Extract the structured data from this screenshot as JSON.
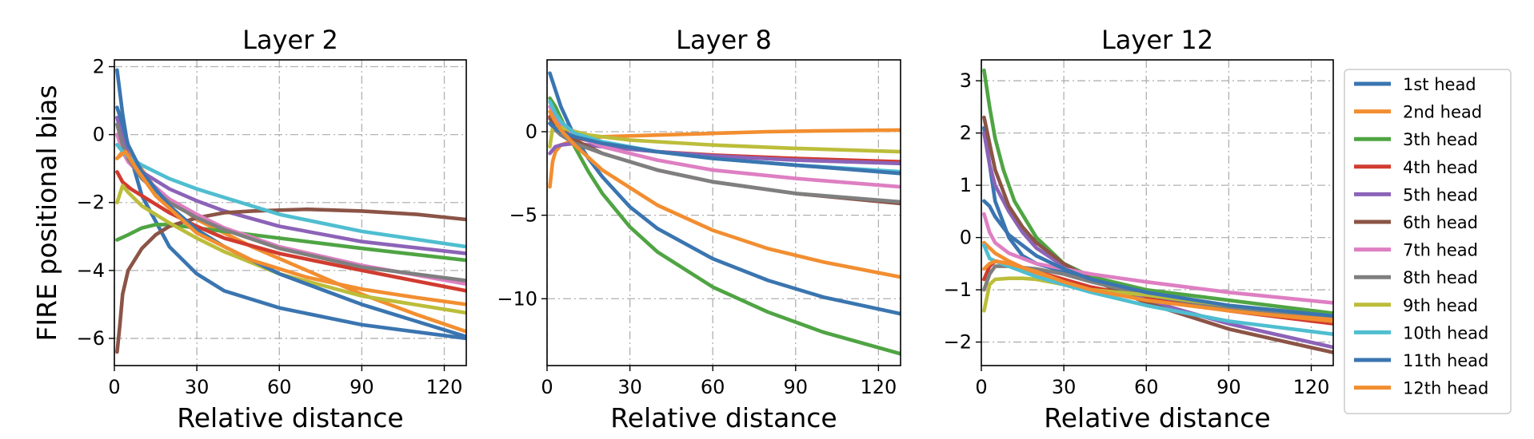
{
  "figure": {
    "ylabel": "FIRE positional bias",
    "legend_position": "right"
  },
  "chart_data": [
    {
      "type": "line",
      "title": "Layer 2",
      "xlabel": "Relative distance",
      "ylabel": "FIRE positional bias",
      "xlim": [
        0,
        128
      ],
      "ylim": [
        -6.8,
        2.2
      ],
      "xticks": [
        0,
        30,
        60,
        90,
        120
      ],
      "yticks": [
        2,
        0,
        -2,
        -4,
        -6
      ],
      "grid": true,
      "series": [
        {
          "name": "1st head",
          "color": "#3a75b0",
          "x": [
            1,
            3,
            5,
            10,
            20,
            30,
            40,
            60,
            90,
            128
          ],
          "y": [
            1.9,
            0.6,
            -0.4,
            -1.8,
            -3.3,
            -4.1,
            -4.6,
            -5.1,
            -5.6,
            -6.0
          ]
        },
        {
          "name": "2nd head",
          "color": "#f28e30",
          "x": [
            1,
            4,
            8,
            15,
            30,
            50,
            70,
            90,
            110,
            128
          ],
          "y": [
            -0.7,
            -0.4,
            -0.8,
            -1.6,
            -2.5,
            -3.3,
            -4.0,
            -4.7,
            -5.3,
            -5.8
          ]
        },
        {
          "name": "3th head",
          "color": "#4fa443",
          "x": [
            1,
            5,
            10,
            15,
            20,
            30,
            40,
            60,
            90,
            128
          ],
          "y": [
            -3.1,
            -2.95,
            -2.75,
            -2.65,
            -2.65,
            -2.75,
            -2.85,
            -3.05,
            -3.35,
            -3.7
          ]
        },
        {
          "name": "4th head",
          "color": "#d13b2f",
          "x": [
            1,
            3,
            6,
            10,
            20,
            30,
            40,
            60,
            90,
            128
          ],
          "y": [
            -1.1,
            -1.4,
            -1.6,
            -1.8,
            -2.3,
            -2.7,
            -3.05,
            -3.5,
            -4.0,
            -4.6
          ]
        },
        {
          "name": "5th head",
          "color": "#8c63b8",
          "x": [
            1,
            3,
            5,
            10,
            20,
            30,
            40,
            60,
            90,
            128
          ],
          "y": [
            0.5,
            -0.1,
            -0.6,
            -1.1,
            -1.6,
            -1.95,
            -2.25,
            -2.7,
            -3.15,
            -3.5
          ]
        },
        {
          "name": "6th head",
          "color": "#8b5446",
          "x": [
            1,
            2,
            3,
            5,
            10,
            15,
            20,
            30,
            40,
            50,
            70,
            90,
            110,
            128
          ],
          "y": [
            -6.4,
            -5.6,
            -4.7,
            -4.0,
            -3.35,
            -2.95,
            -2.7,
            -2.45,
            -2.3,
            -2.25,
            -2.2,
            -2.25,
            -2.35,
            -2.5
          ]
        },
        {
          "name": "7th head",
          "color": "#de7fc2",
          "x": [
            1,
            3,
            5,
            10,
            20,
            30,
            40,
            60,
            90,
            128
          ],
          "y": [
            0.0,
            -0.5,
            -0.8,
            -1.2,
            -1.9,
            -2.35,
            -2.75,
            -3.3,
            -3.85,
            -4.4
          ]
        },
        {
          "name": "8th head",
          "color": "#7f7f7f",
          "x": [
            1,
            3,
            5,
            10,
            20,
            30,
            40,
            60,
            90,
            128
          ],
          "y": [
            0.3,
            -0.3,
            -0.7,
            -1.3,
            -2.0,
            -2.45,
            -2.8,
            -3.35,
            -3.9,
            -4.3
          ]
        },
        {
          "name": "9th head",
          "color": "#bcbd3a",
          "x": [
            1,
            3,
            5,
            10,
            20,
            30,
            40,
            60,
            90,
            128
          ],
          "y": [
            -2.0,
            -1.5,
            -1.7,
            -2.1,
            -2.6,
            -3.05,
            -3.45,
            -4.1,
            -4.75,
            -5.25
          ]
        },
        {
          "name": "10th head",
          "color": "#4fbed0",
          "x": [
            1,
            3,
            5,
            10,
            20,
            30,
            40,
            60,
            90,
            128
          ],
          "y": [
            -0.3,
            -0.5,
            -0.65,
            -0.9,
            -1.3,
            -1.6,
            -1.85,
            -2.35,
            -2.85,
            -3.3
          ]
        },
        {
          "name": "11th head",
          "color": "#3a75b0",
          "x": [
            1,
            3,
            5,
            10,
            20,
            30,
            40,
            60,
            90,
            128
          ],
          "y": [
            0.8,
            0.3,
            -0.3,
            -1.1,
            -2.1,
            -2.8,
            -3.3,
            -4.1,
            -5.0,
            -5.95
          ]
        },
        {
          "name": "12th head",
          "color": "#f28e30",
          "x": [
            1,
            4,
            8,
            15,
            30,
            50,
            70,
            90,
            110,
            128
          ],
          "y": [
            -0.7,
            -0.5,
            -1.0,
            -1.8,
            -2.9,
            -3.7,
            -4.2,
            -4.55,
            -4.8,
            -5.0
          ]
        }
      ]
    },
    {
      "type": "line",
      "title": "Layer 8",
      "xlabel": "Relative distance",
      "ylabel": "",
      "xlim": [
        0,
        128
      ],
      "ylim": [
        -14,
        4.3
      ],
      "xticks": [
        0,
        30,
        60,
        90,
        120
      ],
      "yticks": [
        0,
        -5,
        -10
      ],
      "grid": true,
      "series": [
        {
          "name": "1st head",
          "color": "#3a75b0",
          "x": [
            1,
            3,
            5,
            10,
            15,
            20,
            30,
            40,
            60,
            80,
            100,
            128
          ],
          "y": [
            3.5,
            2.5,
            1.5,
            -0.3,
            -1.6,
            -2.7,
            -4.5,
            -5.8,
            -7.6,
            -8.9,
            -9.9,
            -10.9
          ]
        },
        {
          "name": "2nd head",
          "color": "#f28e30",
          "x": [
            1,
            2,
            3,
            5,
            10,
            20,
            40,
            60,
            80,
            100,
            128
          ],
          "y": [
            -3.3,
            -1.8,
            -1.2,
            -0.8,
            -0.5,
            -0.3,
            -0.2,
            -0.1,
            0.0,
            0.05,
            0.1
          ]
        },
        {
          "name": "3th head",
          "color": "#4fa443",
          "x": [
            1,
            3,
            5,
            10,
            15,
            20,
            30,
            40,
            60,
            80,
            100,
            128
          ],
          "y": [
            2.0,
            1.5,
            0.8,
            -0.9,
            -2.4,
            -3.7,
            -5.7,
            -7.2,
            -9.3,
            -10.8,
            -12.0,
            -13.3
          ]
        },
        {
          "name": "4th head",
          "color": "#d13b2f",
          "x": [
            1,
            5,
            10,
            20,
            40,
            60,
            90,
            128
          ],
          "y": [
            0.9,
            0.2,
            -0.3,
            -0.8,
            -1.2,
            -1.4,
            -1.6,
            -1.8
          ]
        },
        {
          "name": "5th head",
          "color": "#8c63b8",
          "x": [
            1,
            3,
            5,
            10,
            20,
            40,
            60,
            90,
            128
          ],
          "y": [
            -1.3,
            -0.9,
            -0.8,
            -0.7,
            -0.9,
            -1.2,
            -1.45,
            -1.7,
            -1.9
          ]
        },
        {
          "name": "6th head",
          "color": "#8b5446",
          "x": [
            1,
            3,
            5,
            10,
            20,
            40,
            60,
            90,
            128
          ],
          "y": [
            0.8,
            0.3,
            0.0,
            -0.5,
            -1.3,
            -2.3,
            -3.0,
            -3.7,
            -4.3
          ]
        },
        {
          "name": "7th head",
          "color": "#de7fc2",
          "x": [
            1,
            3,
            5,
            10,
            20,
            40,
            60,
            90,
            128
          ],
          "y": [
            1.5,
            0.9,
            0.5,
            -0.2,
            -0.9,
            -1.7,
            -2.3,
            -2.8,
            -3.3
          ]
        },
        {
          "name": "8th head",
          "color": "#7f7f7f",
          "x": [
            1,
            3,
            5,
            10,
            20,
            40,
            60,
            90,
            128
          ],
          "y": [
            0.5,
            0.1,
            -0.2,
            -0.7,
            -1.3,
            -2.3,
            -3.0,
            -3.7,
            -4.2
          ]
        },
        {
          "name": "9th head",
          "color": "#bcbd3a",
          "x": [
            1,
            2,
            4,
            8,
            15,
            30,
            60,
            90,
            128
          ],
          "y": [
            -0.9,
            0.2,
            0.3,
            0.1,
            -0.2,
            -0.5,
            -0.8,
            -1.0,
            -1.2
          ]
        },
        {
          "name": "10th head",
          "color": "#4fbed0",
          "x": [
            1,
            3,
            5,
            10,
            20,
            40,
            60,
            90,
            128
          ],
          "y": [
            1.8,
            1.1,
            0.6,
            -0.1,
            -0.6,
            -1.2,
            -1.6,
            -2.0,
            -2.4
          ]
        },
        {
          "name": "11th head",
          "color": "#3a75b0",
          "x": [
            1,
            3,
            5,
            10,
            20,
            40,
            60,
            90,
            128
          ],
          "y": [
            0.5,
            0.2,
            0.0,
            -0.3,
            -0.7,
            -1.2,
            -1.6,
            -2.0,
            -2.5
          ]
        },
        {
          "name": "12th head",
          "color": "#f28e30",
          "x": [
            1,
            3,
            5,
            10,
            20,
            40,
            60,
            80,
            100,
            128
          ],
          "y": [
            1.2,
            0.6,
            0.1,
            -0.8,
            -2.3,
            -4.4,
            -5.9,
            -7.0,
            -7.8,
            -8.7
          ]
        }
      ]
    },
    {
      "type": "line",
      "title": "Layer 12",
      "xlabel": "Relative distance",
      "ylabel": "",
      "xlim": [
        0,
        128
      ],
      "ylim": [
        -2.45,
        3.4
      ],
      "xticks": [
        0,
        30,
        60,
        90,
        120
      ],
      "yticks": [
        3,
        2,
        1,
        0,
        -1,
        -2
      ],
      "grid": true,
      "series": [
        {
          "name": "1st head",
          "color": "#3a75b0",
          "x": [
            1,
            3,
            5,
            10,
            15,
            20,
            30,
            40,
            60,
            90,
            128
          ],
          "y": [
            2.1,
            1.4,
            0.7,
            0.0,
            -0.35,
            -0.5,
            -0.65,
            -0.8,
            -1.05,
            -1.35,
            -1.6
          ]
        },
        {
          "name": "2nd head",
          "color": "#f28e30",
          "x": [
            1,
            5,
            10,
            20,
            30,
            40,
            60,
            90,
            128
          ],
          "y": [
            -0.1,
            -0.3,
            -0.45,
            -0.7,
            -0.85,
            -0.95,
            -1.15,
            -1.35,
            -1.55
          ]
        },
        {
          "name": "3th head",
          "color": "#4fa443",
          "x": [
            1,
            3,
            5,
            8,
            12,
            20,
            30,
            40,
            60,
            90,
            128
          ],
          "y": [
            3.2,
            2.5,
            1.9,
            1.3,
            0.7,
            0.0,
            -0.5,
            -0.75,
            -1.0,
            -1.2,
            -1.45
          ]
        },
        {
          "name": "4th head",
          "color": "#d13b2f",
          "x": [
            1,
            3,
            5,
            10,
            20,
            30,
            40,
            60,
            90,
            128
          ],
          "y": [
            -0.8,
            -0.55,
            -0.45,
            -0.5,
            -0.65,
            -0.8,
            -0.95,
            -1.15,
            -1.4,
            -1.65
          ]
        },
        {
          "name": "5th head",
          "color": "#8c63b8",
          "x": [
            1,
            3,
            5,
            10,
            15,
            20,
            30,
            40,
            60,
            90,
            128
          ],
          "y": [
            2.0,
            1.4,
            1.0,
            0.5,
            0.1,
            -0.2,
            -0.55,
            -0.8,
            -1.2,
            -1.65,
            -2.1
          ]
        },
        {
          "name": "6th head",
          "color": "#8b5446",
          "x": [
            1,
            3,
            5,
            10,
            15,
            20,
            30,
            40,
            60,
            90,
            128
          ],
          "y": [
            2.3,
            1.8,
            1.3,
            0.6,
            0.2,
            -0.1,
            -0.5,
            -0.8,
            -1.25,
            -1.75,
            -2.2
          ]
        },
        {
          "name": "7th head",
          "color": "#de7fc2",
          "x": [
            1,
            3,
            5,
            10,
            20,
            30,
            40,
            60,
            90,
            128
          ],
          "y": [
            0.45,
            0.1,
            -0.1,
            -0.3,
            -0.5,
            -0.6,
            -0.7,
            -0.85,
            -1.05,
            -1.25
          ]
        },
        {
          "name": "8th head",
          "color": "#7f7f7f",
          "x": [
            1,
            3,
            5,
            10,
            20,
            30,
            40,
            60,
            90,
            128
          ],
          "y": [
            -1.0,
            -0.7,
            -0.55,
            -0.55,
            -0.6,
            -0.7,
            -0.85,
            -1.1,
            -1.35,
            -1.5
          ]
        },
        {
          "name": "9th head",
          "color": "#bcbd3a",
          "x": [
            1,
            3,
            5,
            10,
            15,
            20,
            30,
            40,
            60,
            90,
            128
          ],
          "y": [
            -1.4,
            -0.9,
            -0.8,
            -0.78,
            -0.78,
            -0.8,
            -0.9,
            -1.0,
            -1.1,
            -1.3,
            -1.5
          ]
        },
        {
          "name": "10th head",
          "color": "#4fbed0",
          "x": [
            1,
            3,
            5,
            10,
            20,
            30,
            40,
            60,
            90,
            128
          ],
          "y": [
            -0.15,
            -0.4,
            -0.45,
            -0.55,
            -0.75,
            -0.9,
            -1.05,
            -1.3,
            -1.6,
            -1.85
          ]
        },
        {
          "name": "11th head",
          "color": "#3a75b0",
          "x": [
            1,
            3,
            5,
            10,
            20,
            30,
            40,
            60,
            90,
            128
          ],
          "y": [
            0.7,
            0.6,
            0.4,
            0.05,
            -0.35,
            -0.6,
            -0.8,
            -1.05,
            -1.3,
            -1.5
          ]
        },
        {
          "name": "12th head",
          "color": "#f28e30",
          "x": [
            1,
            3,
            5,
            10,
            20,
            30,
            40,
            60,
            90,
            128
          ],
          "y": [
            -0.6,
            -0.5,
            -0.45,
            -0.5,
            -0.65,
            -0.85,
            -1.0,
            -1.2,
            -1.4,
            -1.6
          ]
        }
      ]
    }
  ]
}
